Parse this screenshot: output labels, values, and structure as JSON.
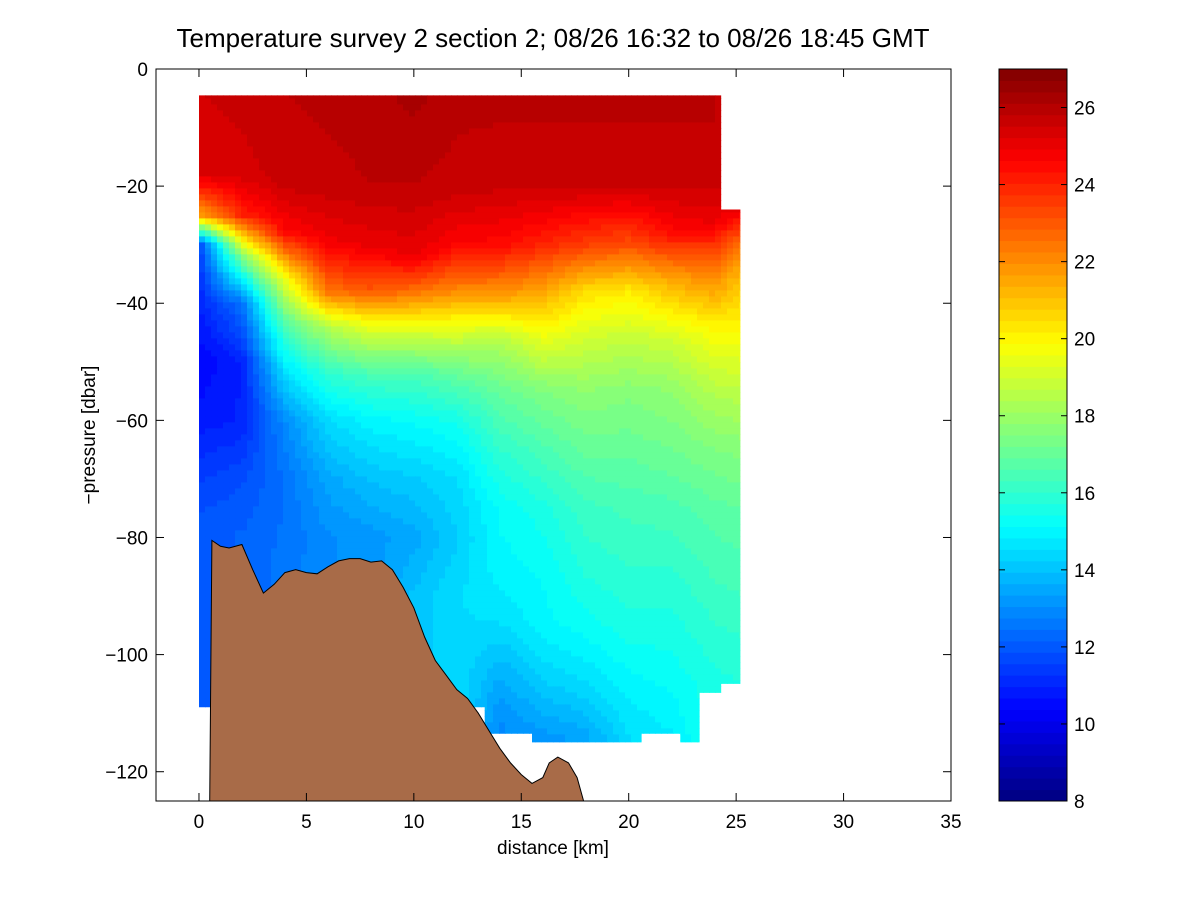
{
  "chart_data": {
    "type": "heatmap",
    "title": "Temperature survey 2 section 2; 08/26 16:32 to 08/26 18:45 GMT",
    "xlabel": "distance [km]",
    "ylabel": "−pressure [dbar]",
    "xlim": [
      -2,
      35
    ],
    "ylim": [
      -125,
      0
    ],
    "x_ticks": [
      0,
      5,
      10,
      15,
      20,
      25,
      30,
      35
    ],
    "x_tick_labels": [
      "0",
      "5",
      "10",
      "15",
      "20",
      "25",
      "30",
      "35"
    ],
    "y_ticks": [
      0,
      -20,
      -40,
      -60,
      -80,
      -100,
      -120
    ],
    "y_tick_labels": [
      "0",
      "−20",
      "−40",
      "−60",
      "−80",
      "−100",
      "−120"
    ],
    "colorbar": {
      "range": [
        8,
        27
      ],
      "ticks": [
        8,
        10,
        12,
        14,
        16,
        18,
        20,
        22,
        24,
        26
      ],
      "tick_labels": [
        "8",
        "10",
        "12",
        "14",
        "16",
        "18",
        "20",
        "22",
        "24",
        "26"
      ],
      "colormap": "jet"
    },
    "grid": false,
    "data_region_boundary": [
      [
        0,
        -4.5
      ],
      [
        24.3,
        -4.5
      ],
      [
        24.3,
        -24
      ],
      [
        25.2,
        -24
      ],
      [
        25.2,
        -105
      ],
      [
        24.3,
        -105
      ],
      [
        24.3,
        -106.5
      ],
      [
        23.3,
        -106.5
      ],
      [
        23.3,
        -115
      ],
      [
        22.4,
        -115
      ],
      [
        22.4,
        -113.5
      ],
      [
        20.6,
        -113.5
      ],
      [
        20.6,
        -115
      ],
      [
        15.5,
        -115
      ],
      [
        15.5,
        -113.5
      ],
      [
        13.3,
        -113.5
      ],
      [
        13.3,
        -109
      ],
      [
        0,
        -109
      ],
      [
        0,
        -77.5
      ],
      [
        0,
        -4.5
      ]
    ],
    "temperature_profiles": [
      {
        "x": 0,
        "depths": [
          -5,
          -18,
          -25,
          -30,
          -40,
          -50,
          -60,
          -70,
          -78
        ],
        "temps": [
          25.5,
          25.3,
          21.5,
          11.5,
          11.0,
          10.4,
          10.8,
          11.5,
          12.0
        ]
      },
      {
        "x": 2,
        "depths": [
          -5,
          -18,
          -25,
          -32,
          -40,
          -50,
          -60,
          -70,
          -80
        ],
        "temps": [
          25.6,
          25.4,
          24.0,
          17.5,
          12.5,
          11.0,
          11.0,
          11.8,
          12.2
        ]
      },
      {
        "x": 4,
        "depths": [
          -5,
          -20,
          -28,
          -36,
          -44,
          -52,
          -60,
          -70,
          -80,
          -86
        ],
        "temps": [
          25.8,
          25.6,
          24.5,
          19.5,
          16.5,
          14.5,
          13.0,
          12.5,
          12.5,
          12.6
        ]
      },
      {
        "x": 6,
        "depths": [
          -5,
          -20,
          -30,
          -38,
          -44,
          -52,
          -60,
          -70,
          -80,
          -86
        ],
        "temps": [
          25.9,
          25.7,
          24.8,
          22.5,
          18.5,
          16.0,
          14.5,
          13.5,
          13.0,
          13.0
        ]
      },
      {
        "x": 8,
        "depths": [
          -5,
          -20,
          -30,
          -38,
          -44,
          -52,
          -60,
          -70,
          -80,
          -84
        ],
        "temps": [
          26.0,
          25.8,
          25.0,
          23.0,
          19.5,
          16.5,
          15.0,
          14.0,
          13.2,
          13.2
        ]
      },
      {
        "x": 10,
        "depths": [
          -5,
          -20,
          -32,
          -38,
          -44,
          -52,
          -60,
          -70,
          -80,
          -90
        ],
        "temps": [
          26.2,
          25.8,
          25.0,
          22.5,
          19.5,
          16.5,
          15.2,
          14.2,
          13.5,
          14.0
        ]
      },
      {
        "x": 12,
        "depths": [
          -5,
          -20,
          -30,
          -38,
          -44,
          -52,
          -60,
          -70,
          -80,
          -90,
          -100
        ],
        "temps": [
          25.9,
          25.7,
          24.6,
          22.0,
          19.5,
          17.0,
          15.5,
          14.5,
          14.2,
          14.5,
          14.5
        ]
      },
      {
        "x": 14,
        "depths": [
          -5,
          -20,
          -30,
          -38,
          -46,
          -55,
          -65,
          -75,
          -85,
          -95,
          -105,
          -112
        ],
        "temps": [
          25.9,
          25.6,
          24.5,
          22.0,
          18.5,
          17.0,
          16.0,
          15.2,
          15.0,
          14.5,
          13.5,
          13.0
        ]
      },
      {
        "x": 16,
        "depths": [
          -5,
          -20,
          -30,
          -38,
          -46,
          -55,
          -65,
          -75,
          -85,
          -95,
          -105,
          -114
        ],
        "temps": [
          25.9,
          25.6,
          24.0,
          21.5,
          19.5,
          17.5,
          16.5,
          15.6,
          15.2,
          15.0,
          14.2,
          13.2
        ]
      },
      {
        "x": 18,
        "depths": [
          -5,
          -20,
          -30,
          -38,
          -46,
          -55,
          -65,
          -75,
          -85,
          -95,
          -105,
          -114
        ],
        "temps": [
          25.9,
          25.6,
          23.5,
          20.5,
          19.0,
          17.8,
          17.0,
          16.2,
          15.8,
          15.3,
          14.5,
          13.5
        ]
      },
      {
        "x": 20,
        "depths": [
          -5,
          -20,
          -30,
          -38,
          -46,
          -55,
          -65,
          -75,
          -85,
          -95,
          -105,
          -114
        ],
        "temps": [
          25.9,
          25.6,
          23.2,
          20.2,
          18.8,
          17.6,
          17.0,
          16.4,
          16.0,
          15.6,
          15.0,
          14.5
        ]
      },
      {
        "x": 22,
        "depths": [
          -5,
          -20,
          -28,
          -36,
          -46,
          -55,
          -65,
          -75,
          -85,
          -95,
          -105,
          -114
        ],
        "temps": [
          25.9,
          25.6,
          24.5,
          21.5,
          19.0,
          17.8,
          17.2,
          16.5,
          16.0,
          15.6,
          15.2,
          14.8
        ]
      },
      {
        "x": 24,
        "depths": [
          -5,
          -20,
          -26,
          -34,
          -44,
          -55,
          -65,
          -75,
          -85,
          -95,
          -105
        ],
        "temps": [
          25.9,
          25.6,
          25.0,
          22.5,
          20.0,
          18.5,
          17.5,
          16.8,
          16.4,
          16.0,
          15.6
        ]
      },
      {
        "x": 25.2,
        "depths": [
          -24,
          -30,
          -36,
          -44,
          -55,
          -65,
          -75,
          -85,
          -95,
          -105
        ],
        "temps": [
          25.0,
          22.5,
          21.0,
          20.0,
          18.6,
          17.6,
          16.9,
          16.5,
          16.1,
          15.7
        ]
      }
    ],
    "bathymetry": {
      "fill_color": "#a86b48",
      "x": [
        0.5,
        0.6,
        1.0,
        1.4,
        2.0,
        2.5,
        3.0,
        3.5,
        4.0,
        4.5,
        5.0,
        5.5,
        6.0,
        6.5,
        7.0,
        7.5,
        8.0,
        8.5,
        9.0,
        9.5,
        10.0,
        10.5,
        11.0,
        11.5,
        12.0,
        12.5,
        13.0,
        13.5,
        14.0,
        14.5,
        15.0,
        15.5,
        16.0,
        16.3,
        16.7,
        17.2,
        17.6,
        17.9
      ],
      "depth": [
        -125,
        -80.5,
        -81.5,
        -81.8,
        -81.2,
        -85.5,
        -89.5,
        -88.0,
        -86.0,
        -85.5,
        -86.0,
        -86.2,
        -85.0,
        -84.0,
        -83.6,
        -83.6,
        -84.2,
        -84.0,
        -85.5,
        -88.5,
        -92.0,
        -97.0,
        -101.0,
        -103.5,
        -106.0,
        -107.5,
        -110.0,
        -113.0,
        -116.0,
        -118.5,
        -120.5,
        -122.0,
        -121.0,
        -118.5,
        -117.5,
        -118.5,
        -121.0,
        -125.0
      ]
    }
  }
}
